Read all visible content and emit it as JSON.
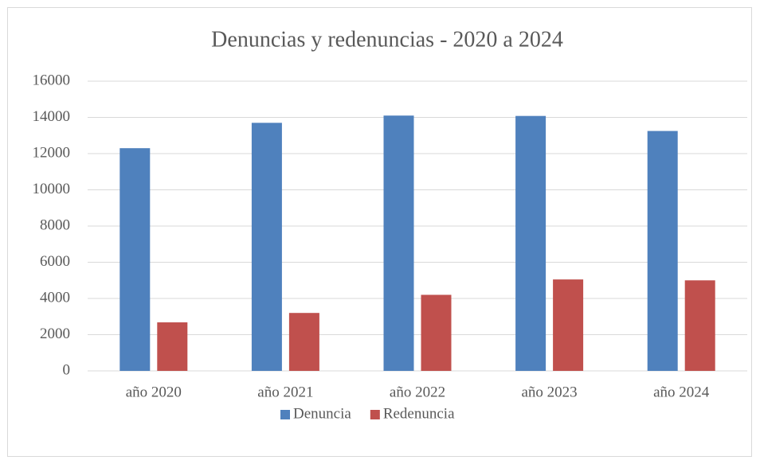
{
  "chart_data": {
    "type": "bar",
    "title": "Denuncias y redenuncias - 2020 a 2024",
    "categories": [
      "año 2020",
      "año 2021",
      "año 2022",
      "año 2023",
      "año 2024"
    ],
    "series": [
      {
        "name": "Denuncia",
        "color": "#4f81bd",
        "values": [
          12300,
          13700,
          14100,
          14080,
          13250
        ]
      },
      {
        "name": "Redenuncia",
        "color": "#c0504d",
        "values": [
          2680,
          3200,
          4200,
          5050,
          5000
        ]
      }
    ],
    "ylim": [
      0,
      16000
    ],
    "yticks": [
      0,
      2000,
      4000,
      6000,
      8000,
      10000,
      12000,
      14000,
      16000
    ],
    "grid": true,
    "legend": "bottom"
  }
}
